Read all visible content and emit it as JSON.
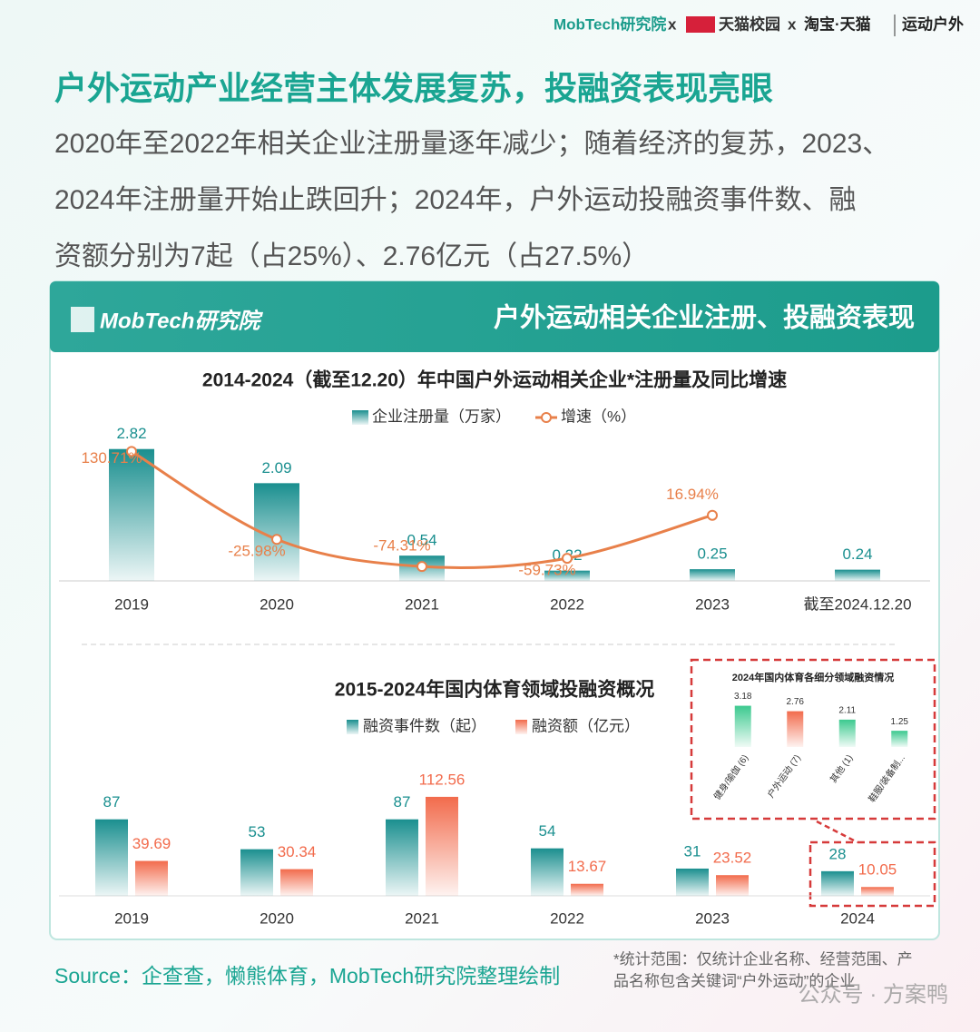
{
  "header": {
    "logos": [
      "MobTech研究院",
      "x",
      "天猫校园",
      "x",
      "淘宝·天猫",
      "运动户外"
    ],
    "title": "户外运动产业经营主体发展复苏，投融资表现亮眼",
    "subtitle": [
      "2020年至2022年相关企业注册量逐年减少；随着经济的复苏，2023、",
      "2024年注册量开始止跌回升；2024年，户外运动投融资事件数、融",
      "资额分别为7起（占25%）、2.76亿元（占27.5%）"
    ]
  },
  "banner": {
    "logo": "MobTech研究院",
    "title": "户外运动相关企业注册、投融资表现"
  },
  "chart_data": [
    {
      "type": "bar",
      "title": "2014-2024（截至12.20）年中国户外运动相关企业*注册量及同比增速",
      "categories": [
        "2019",
        "2020",
        "2021",
        "2022",
        "2023",
        "截至2024.12.20"
      ],
      "series": [
        {
          "name": "企业注册量（万家）",
          "color": "#1a8f8f",
          "values": [
            2.82,
            2.09,
            0.54,
            0.22,
            0.25,
            0.24
          ]
        },
        {
          "name": "增速（%）",
          "color": "#e8804a",
          "type": "line",
          "axis": "y2",
          "values": [
            130.71,
            -25.98,
            -74.31,
            -59.73,
            16.94,
            null
          ],
          "value_labels": [
            "130.71%",
            "-25.98%",
            "-74.31%",
            "-59.73%",
            "16.94%",
            null
          ]
        }
      ],
      "ylim": [
        0,
        3.3
      ],
      "y2lim": [
        -100,
        175
      ]
    },
    {
      "type": "bar",
      "title": "2015-2024年国内体育领域投融资概况",
      "categories": [
        "2019",
        "2020",
        "2021",
        "2022",
        "2023",
        "2024"
      ],
      "series": [
        {
          "name": "融资事件数（起）",
          "color": "#1a8f8f",
          "values": [
            87,
            53,
            87,
            54,
            31,
            28
          ]
        },
        {
          "name": "融资额（亿元）",
          "color": "#f26b4c",
          "values": [
            39.69,
            30.34,
            112.56,
            13.67,
            23.52,
            10.05
          ]
        }
      ],
      "ylim": [
        0,
        130
      ]
    },
    {
      "type": "bar",
      "title": "2024年国内体育各细分领域融资情况",
      "categories": [
        "健身/瑜伽 (6)",
        "户外运动 (7)",
        "其他 (1)",
        "鞋服/装备制..."
      ],
      "values": [
        3.18,
        2.76,
        2.11,
        1.25
      ],
      "colors": [
        "#3cc98f",
        "#f26b4c",
        "#3cc98f",
        "#3cc98f"
      ],
      "ylim": [
        0,
        3.5
      ]
    }
  ],
  "source": "Source：企查查，懒熊体育，MobTech研究院整理绘制",
  "note": [
    "*统计范围：仅统计企业名称、经营范围、产",
    "品名称包含关键词“户外运动”的企业"
  ],
  "watermark": "公众号 · 方案鸭"
}
